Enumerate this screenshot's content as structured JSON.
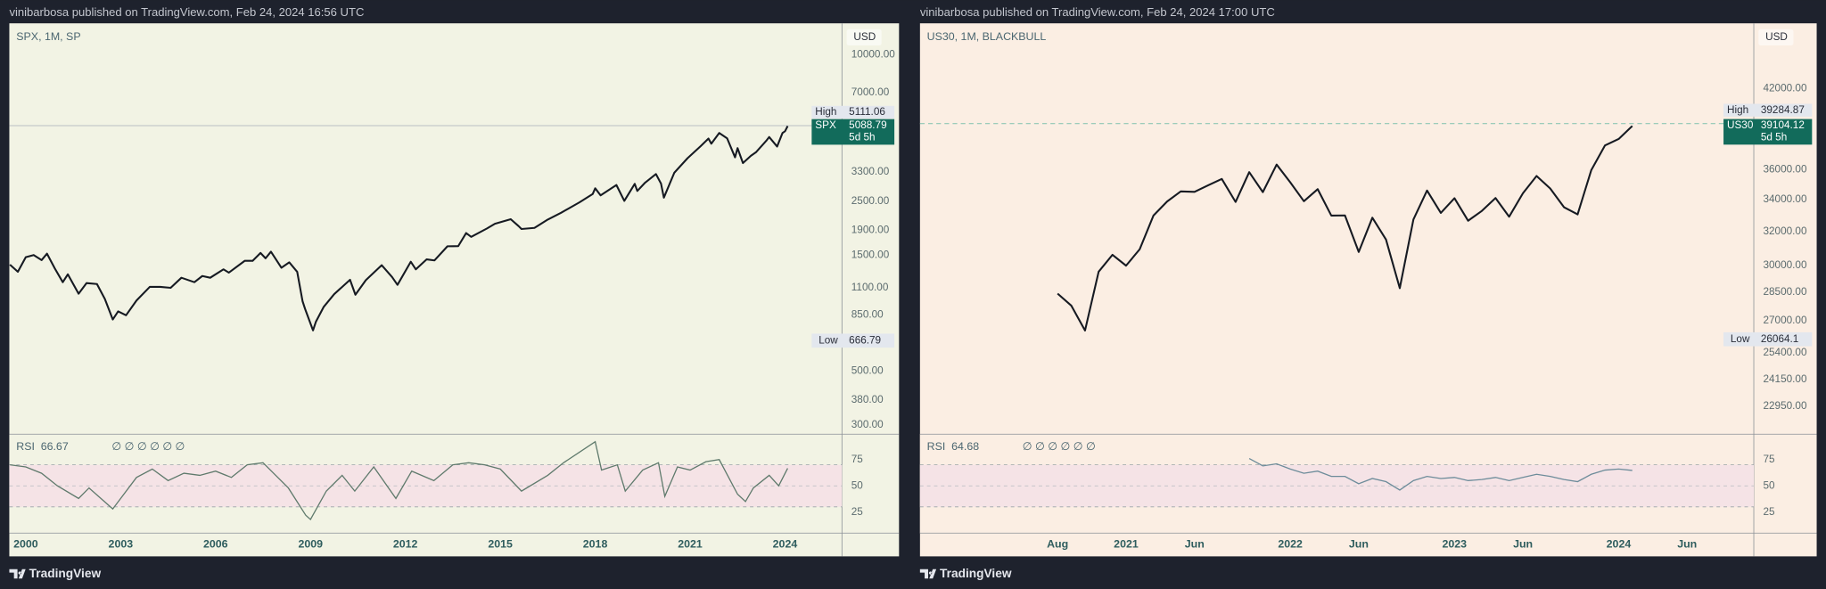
{
  "chart_data": [
    {
      "type": "line",
      "header": "vinibarbosa published on TradingView.com, Feb 24, 2024 16:56 UTC",
      "title": "SPX, 1M, SP",
      "currency": "USD",
      "symbol": "SPX",
      "countdown": "5d 5h",
      "footer": "TradingView",
      "log_scale": true,
      "grid": false,
      "background": "#f2f3e4",
      "color": "#161a22",
      "high": {
        "label": "High",
        "value": 5111.06
      },
      "low": {
        "label": "Low",
        "value": 666.79
      },
      "high_line_color": "#b9bfc4",
      "high_line_style": "solid",
      "last_label_color": "#126b5b",
      "xlim": [
        1999.48,
        2025.8
      ],
      "xticks": [
        2000,
        2003,
        2006,
        2009,
        2012,
        2015,
        2018,
        2021,
        2024
      ],
      "ylim": [
        275,
        13470
      ],
      "yticks": [
        {
          "value": 10000,
          "label": "10000.00"
        },
        {
          "value": 7000,
          "label": "7000.00"
        },
        {
          "value": 3300,
          "label": "3300.00"
        },
        {
          "value": 2500,
          "label": "2500.00"
        },
        {
          "value": 1900,
          "label": "1900.00"
        },
        {
          "value": 1500,
          "label": "1500.00"
        },
        {
          "value": 1100,
          "label": "1100.00"
        },
        {
          "value": 850,
          "label": "850.00"
        },
        {
          "value": 500,
          "label": "500.00"
        },
        {
          "value": 380,
          "label": "380.00"
        },
        {
          "value": 300,
          "label": "300.00"
        }
      ],
      "x": [
        1999.5,
        1999.75,
        2000,
        2000.25,
        2000.5,
        2000.67,
        2000.92,
        2001.17,
        2001.33,
        2001.67,
        2001.92,
        2002.25,
        2002.5,
        2002.75,
        2002.92,
        2003.17,
        2003.5,
        2003.92,
        2004.25,
        2004.58,
        2004.92,
        2005.33,
        2005.58,
        2005.83,
        2006.25,
        2006.42,
        2006.92,
        2007.17,
        2007.42,
        2007.58,
        2007.75,
        2008.08,
        2008.33,
        2008.58,
        2008.75,
        2008.83,
        2009.08,
        2009.17,
        2009.42,
        2009.75,
        2010.25,
        2010.42,
        2010.75,
        2011.25,
        2011.58,
        2011.75,
        2012.17,
        2012.33,
        2012.67,
        2012.92,
        2013.33,
        2013.67,
        2013.92,
        2014.08,
        2014.58,
        2014.83,
        2015.33,
        2015.58,
        2015.67,
        2016.08,
        2016.5,
        2016.92,
        2017.5,
        2017.92,
        2018,
        2018.17,
        2018.67,
        2018.92,
        2019.25,
        2019.33,
        2019.58,
        2019.92,
        2020.08,
        2020.17,
        2020.5,
        2020.92,
        2021.33,
        2021.58,
        2021.67,
        2021.92,
        2022.17,
        2022.42,
        2022.5,
        2022.67,
        2022.92,
        2023.08,
        2023.42,
        2023.5,
        2023.75,
        2023.92,
        2024,
        2024.083
      ],
      "values": [
        1370,
        1280,
        1470,
        1500,
        1430,
        1520,
        1320,
        1160,
        1250,
        1040,
        1150,
        1140,
        990,
        815,
        880,
        848,
        975,
        1110,
        1110,
        1100,
        1210,
        1160,
        1230,
        1210,
        1310,
        1270,
        1420,
        1420,
        1530,
        1455,
        1549,
        1330,
        1400,
        1280,
        968,
        900,
        735,
        797,
        919,
        1036,
        1187,
        1030,
        1183,
        1363,
        1218,
        1131,
        1408,
        1310,
        1440,
        1426,
        1630,
        1632,
        1848,
        1782,
        1930,
        2018,
        2107,
        1972,
        1920,
        1940,
        2099,
        2239,
        2470,
        2673,
        2823,
        2640,
        2913,
        2506,
        2945,
        2752,
        2980,
        3230,
        2954,
        2584,
        3271,
        3756,
        4204,
        4522,
        4307,
        4766,
        4530,
        3785,
        4130,
        3585,
        3839,
        3970,
        4450,
        4588,
        4193,
        4769,
        4845,
        5088.79
      ],
      "rsi": {
        "name": "RSI",
        "icons": "∅ ∅ ∅ ∅ ∅ ∅",
        "color": "#5f7a6c",
        "band_color": "#f5e3e6",
        "ylim": [
          5,
          97
        ],
        "yticks": [
          75,
          50,
          25
        ],
        "band": [
          30,
          70
        ],
        "midline": 50,
        "x": [
          1999.5,
          2000,
          2000.5,
          2001,
          2001.67,
          2002,
          2002.75,
          2003,
          2003.5,
          2004,
          2004.5,
          2005,
          2005.5,
          2006,
          2006.5,
          2007,
          2007.5,
          2007.9,
          2008.3,
          2008.85,
          2009,
          2009.5,
          2010,
          2010.4,
          2011,
          2011.7,
          2012.2,
          2012.9,
          2013.5,
          2014,
          2014.5,
          2015,
          2015.67,
          2016.5,
          2017,
          2018,
          2018.2,
          2018.7,
          2018.95,
          2019.5,
          2020,
          2020.2,
          2020.6,
          2021,
          2021.5,
          2021.92,
          2022.5,
          2022.75,
          2023,
          2023.5,
          2023.8,
          2024.083
        ],
        "values": [
          70,
          68,
          62,
          50,
          38,
          48,
          28,
          38,
          58,
          66,
          55,
          62,
          60,
          64,
          58,
          70,
          72,
          60,
          48,
          22,
          18,
          45,
          60,
          45,
          68,
          38,
          64,
          55,
          70,
          72,
          70,
          66,
          45,
          60,
          72,
          92,
          65,
          70,
          45,
          65,
          72,
          40,
          68,
          65,
          73,
          75,
          42,
          35,
          48,
          60,
          50,
          66.67
        ]
      }
    },
    {
      "type": "line",
      "header": "vinibarbosa published on TradingView.com, Feb 24, 2024 17:00 UTC",
      "title": "US30, 1M, BLACKBULL",
      "currency": "USD",
      "symbol": "US30",
      "countdown": "5d 5h",
      "footer": "TradingView",
      "log_scale": true,
      "grid": false,
      "background": "#fbeee3",
      "color": "#161a22",
      "high": {
        "label": "High",
        "value": 39284.87
      },
      "low": {
        "label": "Low",
        "value": 26064.1
      },
      "high_line_color": "#8fc7b5",
      "high_line_style": "dashed",
      "last_label_color": "#126b5b",
      "xlim": [
        2019.745,
        2024.823
      ],
      "xticks": [
        {
          "value": 2020.583,
          "label": "Aug"
        },
        2021,
        {
          "value": 2021.417,
          "label": "Jun"
        },
        2022,
        {
          "value": 2022.417,
          "label": "Jun"
        },
        2023,
        {
          "value": 2023.417,
          "label": "Jun"
        },
        2024,
        {
          "value": 2024.417,
          "label": "Jun"
        }
      ],
      "ylim": [
        21760,
        47540
      ],
      "yticks": [
        {
          "value": 42000,
          "label": "42000.00"
        },
        {
          "value": 36000,
          "label": "36000.00"
        },
        {
          "value": 34000,
          "label": "34000.00"
        },
        {
          "value": 32000,
          "label": "32000.00"
        },
        {
          "value": 30000,
          "label": "30000.00"
        },
        {
          "value": 28500,
          "label": "28500.00"
        },
        {
          "value": 27000,
          "label": "27000.00"
        },
        {
          "value": 25400,
          "label": "25400.00"
        },
        {
          "value": 24150,
          "label": "24150.00"
        },
        {
          "value": 22950,
          "label": "22950.00"
        }
      ],
      "x": [
        2020.583,
        2020.667,
        2020.75,
        2020.833,
        2020.917,
        2021,
        2021.083,
        2021.167,
        2021.25,
        2021.333,
        2021.417,
        2021.5,
        2021.583,
        2021.667,
        2021.75,
        2021.833,
        2021.917,
        2022,
        2022.083,
        2022.167,
        2022.25,
        2022.333,
        2022.417,
        2022.5,
        2022.583,
        2022.667,
        2022.75,
        2022.833,
        2022.917,
        2023,
        2023.083,
        2023.167,
        2023.25,
        2023.333,
        2023.417,
        2023.5,
        2023.583,
        2023.667,
        2023.75,
        2023.833,
        2023.917,
        2024,
        2024.083
      ],
      "values": [
        28430,
        27782,
        26502,
        29638,
        30606,
        29983,
        30932,
        32981,
        33875,
        34529,
        34503,
        34935,
        35361,
        33844,
        35820,
        34484,
        36338,
        35132,
        33893,
        34678,
        32977,
        32990,
        30775,
        32845,
        31510,
        28726,
        32733,
        34590,
        33147,
        34086,
        32657,
        33274,
        34098,
        32908,
        34408,
        35560,
        34722,
        33508,
        33053,
        35951,
        37690,
        38150,
        39104.12
      ],
      "rsi": {
        "name": "RSI",
        "icons": "∅ ∅ ∅ ∅ ∅ ∅",
        "color": "#6d8c9a",
        "band_color": "#f5e3e6",
        "ylim": [
          5,
          97
        ],
        "yticks": [
          75,
          50,
          25
        ],
        "band": [
          30,
          70
        ],
        "midline": 50,
        "x": [
          2021.75,
          2021.833,
          2021.917,
          2022,
          2022.083,
          2022.167,
          2022.25,
          2022.333,
          2022.417,
          2022.5,
          2022.583,
          2022.667,
          2022.75,
          2022.833,
          2022.917,
          2023,
          2023.083,
          2023.167,
          2023.25,
          2023.333,
          2023.417,
          2023.5,
          2023.583,
          2023.667,
          2023.75,
          2023.833,
          2023.917,
          2024,
          2024.083
        ],
        "values": [
          76,
          69,
          71,
          66,
          62,
          64,
          59,
          59,
          52,
          57,
          54,
          46,
          55,
          59,
          57,
          58,
          55,
          56,
          58,
          55,
          58,
          61,
          59,
          56,
          54,
          61,
          65,
          66,
          64.68
        ]
      }
    }
  ]
}
